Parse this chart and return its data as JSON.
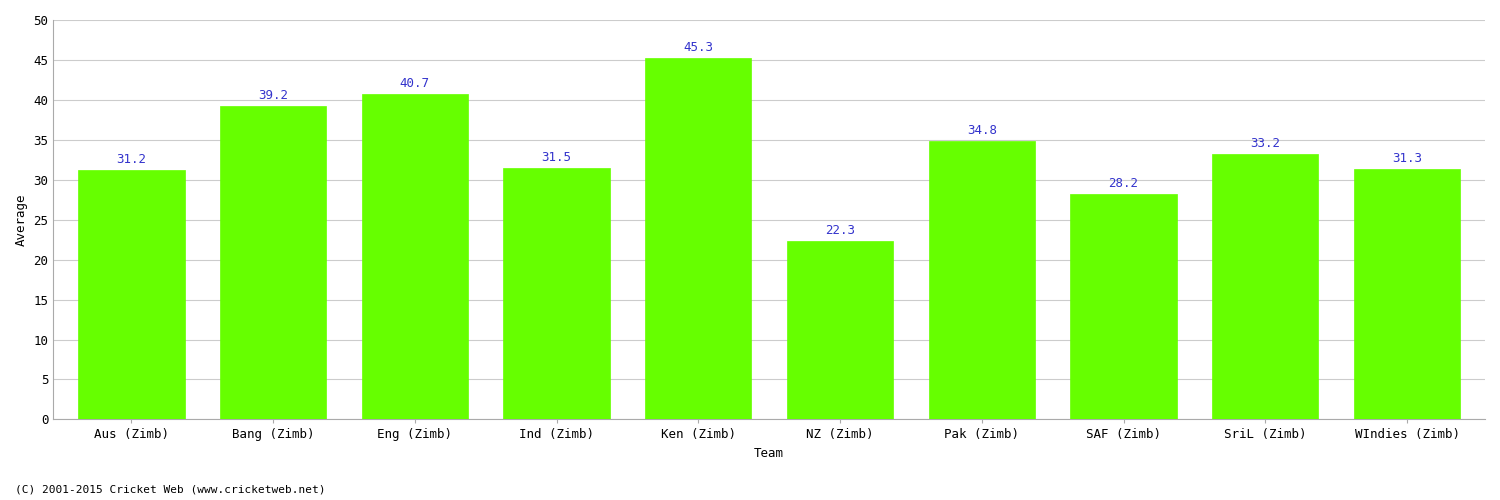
{
  "categories": [
    "Aus (Zimb)",
    "Bang (Zimb)",
    "Eng (Zimb)",
    "Ind (Zimb)",
    "Ken (Zimb)",
    "NZ (Zimb)",
    "Pak (Zimb)",
    "SAF (Zimb)",
    "SriL (Zimb)",
    "WIndies (Zimb)"
  ],
  "values": [
    31.2,
    39.2,
    40.7,
    31.5,
    45.3,
    22.3,
    34.8,
    28.2,
    33.2,
    31.3
  ],
  "bar_color": "#66ff00",
  "bar_edge_color": "#66ff00",
  "label_color": "#3333cc",
  "xlabel": "Team",
  "ylabel": "Average",
  "ylim": [
    0,
    50
  ],
  "yticks": [
    0,
    5,
    10,
    15,
    20,
    25,
    30,
    35,
    40,
    45,
    50
  ],
  "grid_color": "#cccccc",
  "background_color": "#ffffff",
  "footer_text": "(C) 2001-2015 Cricket Web (www.cricketweb.net)",
  "label_fontsize": 9,
  "axis_label_fontsize": 9,
  "tick_fontsize": 9,
  "footer_fontsize": 8,
  "bar_width": 0.75
}
